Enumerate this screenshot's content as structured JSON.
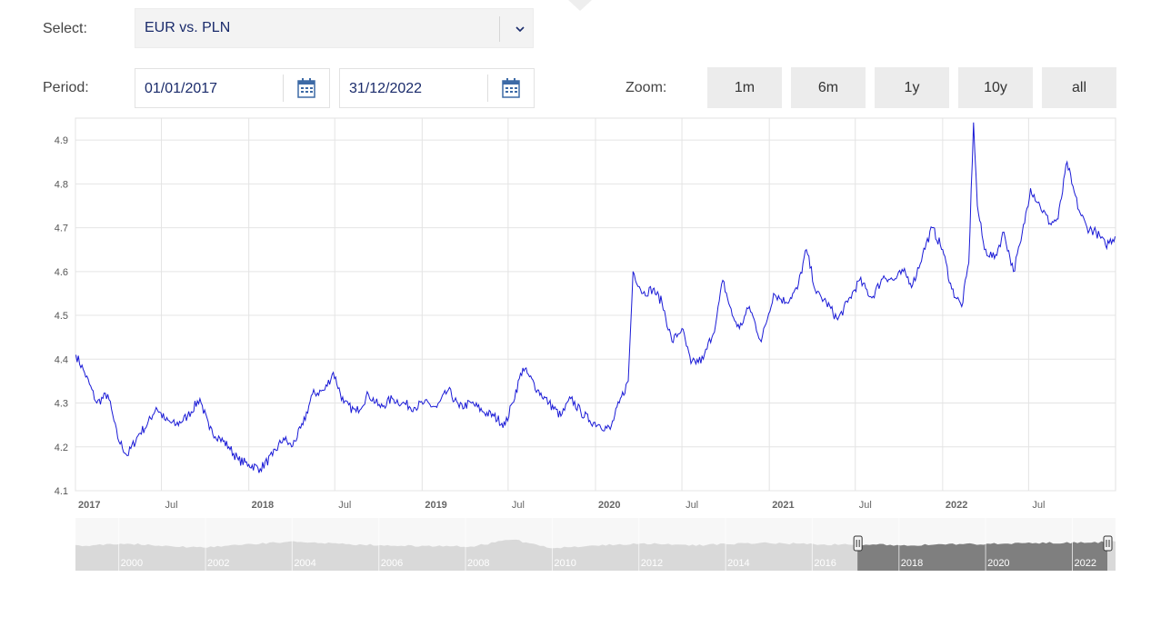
{
  "controls": {
    "select_label": "Select:",
    "select_value": "EUR vs. PLN",
    "period_label": "Period:",
    "date_from": "01/01/2017",
    "date_to": "31/12/2022",
    "zoom_label": "Zoom:",
    "zoom_buttons": [
      "1m",
      "6m",
      "1y",
      "10y",
      "all"
    ]
  },
  "colors": {
    "line": "#1a1ad6",
    "navigator_fill": "#d9d9d9",
    "navigator_selected": "#7f7f7f",
    "accent": "#1a2b6b"
  },
  "chart_data": {
    "type": "line",
    "series": [
      {
        "x": [
          "2017-01-02",
          "2017-01-20",
          "2017-02-15",
          "2017-03-10",
          "2017-03-31",
          "2017-04-20",
          "2017-05-15",
          "2017-06-01",
          "2017-06-20",
          "2017-07-10",
          "2017-08-01",
          "2017-08-25",
          "2017-09-20",
          "2017-10-10",
          "2017-11-01",
          "2017-11-20",
          "2017-12-10",
          "2018-01-01",
          "2018-01-25",
          "2018-02-20",
          "2018-03-15",
          "2018-04-01",
          "2018-04-25",
          "2018-05-15",
          "2018-06-10",
          "2018-06-28",
          "2018-07-20",
          "2018-08-15",
          "2018-09-10",
          "2018-10-05",
          "2018-10-30",
          "2018-11-20",
          "2018-12-15",
          "2019-01-05",
          "2019-02-01",
          "2019-02-25",
          "2019-03-20",
          "2019-04-15",
          "2019-05-10",
          "2019-06-01",
          "2019-06-25",
          "2019-07-10",
          "2019-08-01",
          "2019-08-15",
          "2019-09-01",
          "2019-09-25",
          "2019-10-20",
          "2019-11-10",
          "2019-12-01",
          "2019-12-20",
          "2020-01-10",
          "2020-02-01",
          "2020-02-20",
          "2020-03-10",
          "2020-03-20",
          "2020-04-10",
          "2020-05-01",
          "2020-05-20",
          "2020-06-10",
          "2020-07-01",
          "2020-07-20",
          "2020-08-15",
          "2020-09-10",
          "2020-09-25",
          "2020-10-15",
          "2020-10-30",
          "2020-11-20",
          "2020-12-15",
          "2021-01-10",
          "2021-02-05",
          "2021-03-01",
          "2021-03-20",
          "2021-04-10",
          "2021-05-01",
          "2021-05-25",
          "2021-06-15",
          "2021-07-10",
          "2021-08-05",
          "2021-08-30",
          "2021-09-20",
          "2021-10-10",
          "2021-10-30",
          "2021-11-20",
          "2021-12-10",
          "2022-01-01",
          "2022-01-20",
          "2022-02-10",
          "2022-02-25",
          "2022-03-07",
          "2022-03-15",
          "2022-03-30",
          "2022-04-20",
          "2022-05-10",
          "2022-05-30",
          "2022-06-15",
          "2022-07-05",
          "2022-07-25",
          "2022-08-15",
          "2022-09-01",
          "2022-09-20",
          "2022-09-30",
          "2022-10-15",
          "2022-11-01",
          "2022-11-20",
          "2022-12-10",
          "2022-12-30"
        ],
        "y": [
          4.41,
          4.37,
          4.3,
          4.32,
          4.22,
          4.18,
          4.23,
          4.25,
          4.29,
          4.26,
          4.25,
          4.27,
          4.31,
          4.24,
          4.22,
          4.2,
          4.17,
          4.16,
          4.15,
          4.18,
          4.22,
          4.2,
          4.25,
          4.32,
          4.33,
          4.37,
          4.3,
          4.28,
          4.32,
          4.29,
          4.31,
          4.3,
          4.29,
          4.3,
          4.29,
          4.33,
          4.29,
          4.3,
          4.28,
          4.27,
          4.25,
          4.3,
          4.38,
          4.36,
          4.33,
          4.3,
          4.27,
          4.31,
          4.28,
          4.26,
          4.25,
          4.24,
          4.3,
          4.35,
          4.6,
          4.55,
          4.56,
          4.53,
          4.44,
          4.47,
          4.39,
          4.4,
          4.48,
          4.58,
          4.5,
          4.47,
          4.52,
          4.44,
          4.55,
          4.53,
          4.56,
          4.65,
          4.55,
          4.53,
          4.49,
          4.53,
          4.58,
          4.54,
          4.59,
          4.58,
          4.6,
          4.57,
          4.64,
          4.7,
          4.65,
          4.56,
          4.52,
          4.62,
          4.94,
          4.75,
          4.65,
          4.63,
          4.69,
          4.6,
          4.67,
          4.79,
          4.75,
          4.71,
          4.72,
          4.85,
          4.8,
          4.74,
          4.7,
          4.69,
          4.66,
          4.68
        ]
      }
    ],
    "x_ticks": [
      {
        "label": "2017",
        "date": "2017-01-01",
        "bold": true
      },
      {
        "label": "Jul",
        "date": "2017-07-01"
      },
      {
        "label": "2018",
        "date": "2018-01-01",
        "bold": true
      },
      {
        "label": "Jul",
        "date": "2018-07-01"
      },
      {
        "label": "2019",
        "date": "2019-01-01",
        "bold": true
      },
      {
        "label": "Jul",
        "date": "2019-07-01"
      },
      {
        "label": "2020",
        "date": "2020-01-01",
        "bold": true
      },
      {
        "label": "Jul",
        "date": "2020-07-01"
      },
      {
        "label": "2021",
        "date": "2021-01-01",
        "bold": true
      },
      {
        "label": "Jul",
        "date": "2021-07-01"
      },
      {
        "label": "2022",
        "date": "2022-01-01",
        "bold": true
      },
      {
        "label": "Jul",
        "date": "2022-07-01"
      }
    ],
    "y_ticks": [
      "4.1",
      "4.2",
      "4.3",
      "4.4",
      "4.5",
      "4.6",
      "4.7",
      "4.8",
      "4.9"
    ],
    "xlim": [
      "2017-01-01",
      "2022-12-31"
    ],
    "ylim": [
      4.1,
      4.95
    ],
    "grid": true,
    "navigator": {
      "xlim": [
        "1999-01-01",
        "2022-12-31"
      ],
      "labels": [
        "2000",
        "2002",
        "2004",
        "2006",
        "2008",
        "2010",
        "2012",
        "2014",
        "2016",
        "2018",
        "2020",
        "2022"
      ],
      "selected": [
        "2017-01-01",
        "2022-12-31"
      ]
    }
  }
}
